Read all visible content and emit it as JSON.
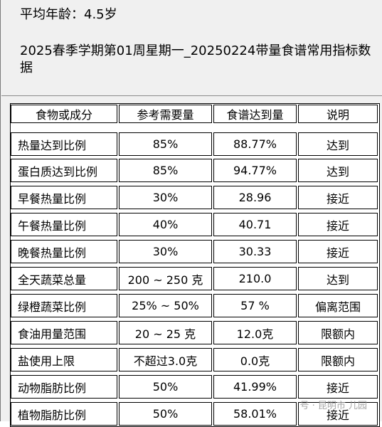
{
  "header": {
    "age_label": "平均年龄：4.5岁",
    "title": "2025春季学期第01周星期一_20250224带量食谱常用指标数据"
  },
  "table": {
    "columns": [
      "食物或成分",
      "参考需要量",
      "食谱达到量",
      "说明"
    ],
    "rows": [
      {
        "item": "热量达到比例",
        "reference": "85%",
        "actual": "88.77%",
        "note": "达到"
      },
      {
        "item": "蛋白质达到比例",
        "reference": "85%",
        "actual": "94.77%",
        "note": "达到"
      },
      {
        "item": "早餐热量比例",
        "reference": "30%",
        "actual": "28.96",
        "note": "接近"
      },
      {
        "item": "午餐热量比例",
        "reference": "40%",
        "actual": "40.71",
        "note": "接近"
      },
      {
        "item": "晚餐热量比例",
        "reference": "30%",
        "actual": "30.33",
        "note": "接近"
      },
      {
        "item": "全天蔬菜总量",
        "reference": "200 ~ 250 克",
        "actual": "210.0",
        "note": "达到"
      },
      {
        "item": "绿橙蔬菜比例",
        "reference": "25% ~ 50%",
        "actual": "57 %",
        "note": "偏离范围"
      },
      {
        "item": "食油用量范围",
        "reference": "20 ~ 25 克",
        "actual": "12.0克",
        "note": "限额内"
      },
      {
        "item": "盐使用上限",
        "reference": "不超过3.0克",
        "actual": "0.0克",
        "note": "限额内"
      },
      {
        "item": "动物脂肪比例",
        "reference": "50%",
        "actual": "41.99%",
        "note": "接近"
      },
      {
        "item": "植物脂肪比例",
        "reference": "50%",
        "actual": "58.01%",
        "note": "接近"
      }
    ]
  },
  "watermark": "号 · 昆明市 儿园"
}
